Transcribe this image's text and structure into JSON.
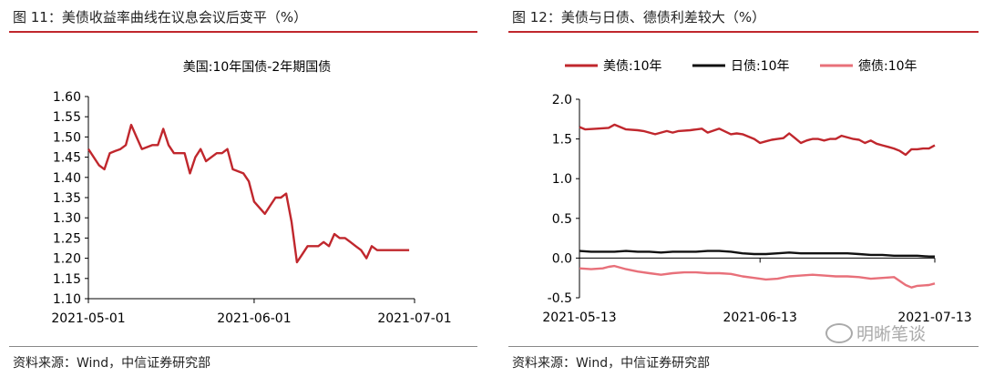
{
  "left_panel": {
    "figure_title": "图 11：美债收益率曲线在议息会议后变平（%）",
    "source": "资料来源：Wind，中信证券研究部"
  },
  "right_panel": {
    "figure_title": "图 12：美债与日债、德债利差较大（%）",
    "source": "资料来源：Wind，中信证券研究部"
  },
  "watermark": {
    "text": "明晰笔谈",
    "icon": "wechat-icon"
  },
  "chart_data": [
    {
      "type": "line",
      "title": "美国:10年国债-2年期国债",
      "xlabel": "",
      "ylabel": "",
      "x_ticks": [
        "2021-05-01",
        "2021-06-01",
        "2021-07-01"
      ],
      "y_ticks": [
        "1.60",
        "1.55",
        "1.50",
        "1.45",
        "1.40",
        "1.35",
        "1.30",
        "1.25",
        "1.20",
        "1.15",
        "1.10"
      ],
      "ylim": [
        1.1,
        1.6
      ],
      "grid": false,
      "series": [
        {
          "color": "#c0272d",
          "x": [
            0,
            2,
            3,
            4,
            5,
            6,
            7,
            8,
            9,
            10,
            12,
            13,
            14,
            15,
            16,
            17,
            18,
            19,
            20,
            21,
            22,
            23,
            24,
            25,
            26,
            27,
            28,
            29,
            30,
            31,
            33,
            34,
            35,
            36,
            37,
            38,
            39,
            40,
            41,
            43,
            44,
            45,
            46,
            47,
            48,
            49,
            50,
            51,
            52,
            53,
            54,
            55,
            56,
            58,
            59,
            60
          ],
          "values": [
            1.47,
            1.43,
            1.42,
            1.46,
            1.465,
            1.47,
            1.48,
            1.53,
            1.5,
            1.47,
            1.48,
            1.48,
            1.52,
            1.48,
            1.46,
            1.46,
            1.46,
            1.41,
            1.45,
            1.47,
            1.44,
            1.45,
            1.46,
            1.46,
            1.47,
            1.42,
            1.415,
            1.41,
            1.39,
            1.34,
            1.31,
            1.33,
            1.35,
            1.35,
            1.36,
            1.29,
            1.19,
            1.21,
            1.23,
            1.23,
            1.24,
            1.23,
            1.26,
            1.25,
            1.25,
            1.24,
            1.23,
            1.22,
            1.2,
            1.23,
            1.22,
            1.22,
            1.22,
            1.22,
            1.22,
            1.22
          ]
        }
      ]
    },
    {
      "type": "line",
      "title": "",
      "xlabel": "",
      "ylabel": "",
      "x_ticks": [
        "2021-05-13",
        "2021-06-13",
        "2021-07-13"
      ],
      "y_ticks": [
        "2.0",
        "1.5",
        "1.0",
        "0.5",
        "0.0",
        "-0.5"
      ],
      "ylim": [
        -0.5,
        2.0
      ],
      "grid": false,
      "legend": "top",
      "series": [
        {
          "name": "美债:10年",
          "color": "#c0272d",
          "x": [
            0,
            1,
            3,
            5,
            6,
            8,
            10,
            11,
            13,
            15,
            16,
            17,
            19,
            21,
            22,
            24,
            26,
            27,
            28,
            29,
            30,
            31,
            32,
            33,
            34,
            35,
            36,
            37,
            38,
            39,
            40,
            41,
            42,
            43,
            44,
            45,
            46,
            47,
            48,
            49,
            50,
            51,
            52,
            53,
            54,
            55,
            56,
            57,
            58,
            59,
            60,
            61
          ],
          "values": [
            1.65,
            1.62,
            1.63,
            1.64,
            1.68,
            1.62,
            1.61,
            1.6,
            1.56,
            1.6,
            1.58,
            1.6,
            1.61,
            1.63,
            1.58,
            1.63,
            1.56,
            1.57,
            1.56,
            1.53,
            1.5,
            1.45,
            1.47,
            1.49,
            1.5,
            1.51,
            1.57,
            1.51,
            1.45,
            1.48,
            1.5,
            1.5,
            1.48,
            1.5,
            1.5,
            1.54,
            1.52,
            1.5,
            1.49,
            1.45,
            1.48,
            1.44,
            1.42,
            1.4,
            1.38,
            1.35,
            1.3,
            1.37,
            1.37,
            1.38,
            1.38,
            1.42
          ]
        },
        {
          "name": "日债:10年",
          "color": "#111111",
          "x": [
            0,
            2,
            4,
            6,
            8,
            10,
            12,
            14,
            16,
            18,
            20,
            22,
            24,
            26,
            28,
            30,
            32,
            34,
            36,
            38,
            40,
            42,
            44,
            46,
            48,
            50,
            52,
            54,
            56,
            58,
            60,
            61
          ],
          "values": [
            0.09,
            0.08,
            0.08,
            0.08,
            0.09,
            0.08,
            0.08,
            0.07,
            0.08,
            0.08,
            0.08,
            0.09,
            0.09,
            0.08,
            0.06,
            0.05,
            0.05,
            0.06,
            0.07,
            0.06,
            0.06,
            0.06,
            0.06,
            0.06,
            0.05,
            0.04,
            0.04,
            0.03,
            0.03,
            0.03,
            0.02,
            0.02
          ]
        },
        {
          "name": "德债:10年",
          "color": "#e8707a",
          "x": [
            0,
            2,
            4,
            5,
            6,
            8,
            10,
            12,
            14,
            16,
            18,
            20,
            22,
            24,
            26,
            28,
            30,
            32,
            34,
            36,
            38,
            40,
            42,
            44,
            46,
            48,
            50,
            52,
            54,
            56,
            57,
            58,
            60,
            61
          ],
          "values": [
            -0.13,
            -0.14,
            -0.13,
            -0.11,
            -0.1,
            -0.14,
            -0.17,
            -0.19,
            -0.21,
            -0.19,
            -0.18,
            -0.18,
            -0.19,
            -0.19,
            -0.2,
            -0.23,
            -0.25,
            -0.27,
            -0.26,
            -0.23,
            -0.22,
            -0.21,
            -0.22,
            -0.23,
            -0.23,
            -0.24,
            -0.26,
            -0.25,
            -0.24,
            -0.34,
            -0.37,
            -0.35,
            -0.34,
            -0.32
          ]
        }
      ]
    }
  ]
}
